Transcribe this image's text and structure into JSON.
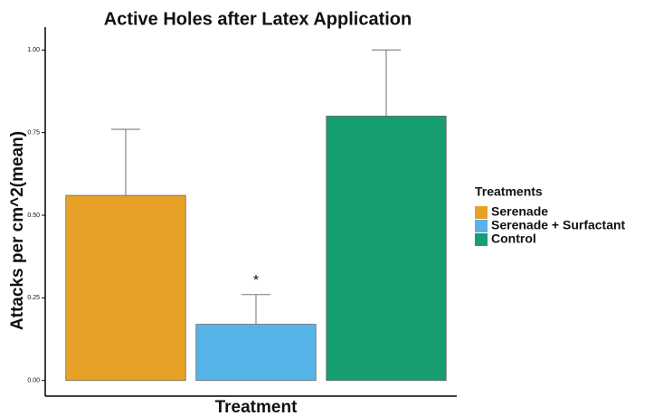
{
  "chart_data": {
    "type": "bar",
    "title": "Active Holes after Latex Application",
    "x_label": "Treatment",
    "y_label": "Attacks per cm^2(mean)",
    "categories": [
      "Serenade",
      "Serenade + Surfactant",
      "Control"
    ],
    "values": [
      0.56,
      0.17,
      0.8
    ],
    "errors": [
      0.2,
      0.09,
      0.2
    ],
    "colors": [
      "#e8a127",
      "#56b4e9",
      "#169e72"
    ],
    "annotations": [
      {
        "category": 1,
        "text": "*"
      }
    ],
    "legend_title": "Treatments",
    "legend": "right",
    "ylim": [
      -0.05,
      1.05
    ],
    "yticks": [
      {
        "value": 0,
        "label": "0.00"
      },
      {
        "value": 0.25,
        "label": "0.25"
      },
      {
        "value": 0.5,
        "label": "0.50"
      },
      {
        "value": 0.75,
        "label": "0.75"
      },
      {
        "value": 1,
        "label": "1.00"
      }
    ],
    "grid": false
  }
}
